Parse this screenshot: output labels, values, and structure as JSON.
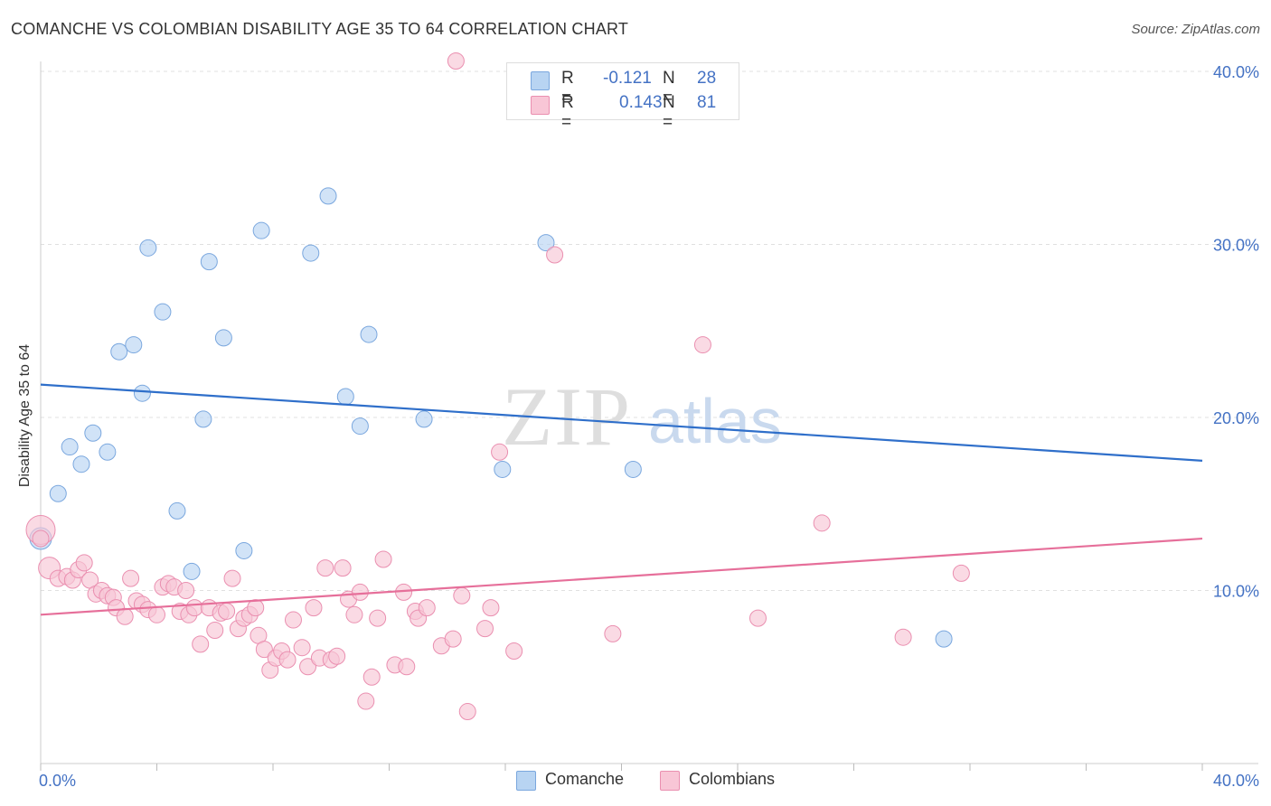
{
  "title": "COMANCHE VS COLOMBIAN DISABILITY AGE 35 TO 64 CORRELATION CHART",
  "source": "Source: ZipAtlas.com",
  "watermark": {
    "zip": "ZIP",
    "atlas": "atlas"
  },
  "legend": {
    "rows": [
      {
        "r_label": "R =",
        "r_value": "-0.121",
        "n_label": "N =",
        "n_value": "28"
      },
      {
        "r_label": "R =",
        "r_value": "0.143",
        "n_label": "N =",
        "n_value": "81"
      }
    ]
  },
  "bottom_legend": [
    "Comanche",
    "Colombians"
  ],
  "colors": {
    "comanche_fill": "#b8d4f2",
    "comanche_stroke": "#7aa7de",
    "comanche_line": "#2f6fca",
    "colombian_fill": "#f8c6d6",
    "colombian_stroke": "#ea8fb0",
    "colombian_line": "#e66f9a",
    "tick_label": "#4472c4",
    "grid": "#e0e0e0"
  },
  "chart_data": {
    "type": "scatter",
    "title": "COMANCHE VS COLOMBIAN DISABILITY AGE 35 TO 64 CORRELATION CHART",
    "xlabel": "",
    "ylabel": "Disability Age 35 to 64",
    "xlim": [
      0,
      40
    ],
    "ylim": [
      0,
      40
    ],
    "x_tick_labels": [
      "0.0%",
      "40.0%"
    ],
    "y_ticks": [
      10,
      20,
      30,
      40
    ],
    "y_tick_labels": [
      "10.0%",
      "20.0%",
      "30.0%",
      "40.0%"
    ],
    "grid": true,
    "series": [
      {
        "name": "Comanche",
        "r": -0.121,
        "n": 28,
        "trend": {
          "x": [
            0,
            40
          ],
          "y": [
            21.9,
            17.5
          ]
        },
        "points": [
          {
            "x": 0.0,
            "y": 13.0
          },
          {
            "x": 0.6,
            "y": 15.6
          },
          {
            "x": 1.0,
            "y": 18.3
          },
          {
            "x": 1.4,
            "y": 17.3
          },
          {
            "x": 1.8,
            "y": 19.1
          },
          {
            "x": 2.3,
            "y": 18.0
          },
          {
            "x": 2.7,
            "y": 23.8
          },
          {
            "x": 3.2,
            "y": 24.2
          },
          {
            "x": 3.5,
            "y": 21.4
          },
          {
            "x": 3.7,
            "y": 29.8
          },
          {
            "x": 4.2,
            "y": 26.1
          },
          {
            "x": 4.7,
            "y": 14.6
          },
          {
            "x": 5.2,
            "y": 11.1
          },
          {
            "x": 5.6,
            "y": 19.9
          },
          {
            "x": 5.8,
            "y": 29.0
          },
          {
            "x": 6.3,
            "y": 24.6
          },
          {
            "x": 7.0,
            "y": 12.3
          },
          {
            "x": 7.6,
            "y": 30.8
          },
          {
            "x": 9.3,
            "y": 29.5
          },
          {
            "x": 9.9,
            "y": 32.8
          },
          {
            "x": 10.5,
            "y": 21.2
          },
          {
            "x": 11.0,
            "y": 19.5
          },
          {
            "x": 11.3,
            "y": 24.8
          },
          {
            "x": 13.2,
            "y": 19.9
          },
          {
            "x": 15.9,
            "y": 17.0
          },
          {
            "x": 17.4,
            "y": 30.1
          },
          {
            "x": 20.4,
            "y": 17.0
          },
          {
            "x": 31.1,
            "y": 7.2
          }
        ]
      },
      {
        "name": "Colombians",
        "r": 0.143,
        "n": 81,
        "trend": {
          "x": [
            0,
            40
          ],
          "y": [
            8.6,
            13.0
          ]
        },
        "points": [
          {
            "x": 0.0,
            "y": 13.5
          },
          {
            "x": 0.3,
            "y": 11.3
          },
          {
            "x": 0.6,
            "y": 10.7
          },
          {
            "x": 0.9,
            "y": 10.8
          },
          {
            "x": 1.1,
            "y": 10.6
          },
          {
            "x": 1.3,
            "y": 11.2
          },
          {
            "x": 1.5,
            "y": 11.6
          },
          {
            "x": 1.7,
            "y": 10.6
          },
          {
            "x": 1.9,
            "y": 9.8
          },
          {
            "x": 2.1,
            "y": 10.0
          },
          {
            "x": 2.3,
            "y": 9.7
          },
          {
            "x": 2.5,
            "y": 9.6
          },
          {
            "x": 2.6,
            "y": 9.0
          },
          {
            "x": 2.9,
            "y": 8.5
          },
          {
            "x": 3.1,
            "y": 10.7
          },
          {
            "x": 3.3,
            "y": 9.4
          },
          {
            "x": 3.5,
            "y": 9.2
          },
          {
            "x": 3.7,
            "y": 8.9
          },
          {
            "x": 4.0,
            "y": 8.6
          },
          {
            "x": 4.2,
            "y": 10.2
          },
          {
            "x": 4.4,
            "y": 10.4
          },
          {
            "x": 4.6,
            "y": 10.2
          },
          {
            "x": 4.8,
            "y": 8.8
          },
          {
            "x": 5.1,
            "y": 8.6
          },
          {
            "x": 5.0,
            "y": 10.0
          },
          {
            "x": 5.3,
            "y": 9.0
          },
          {
            "x": 5.5,
            "y": 6.9
          },
          {
            "x": 5.8,
            "y": 9.0
          },
          {
            "x": 6.0,
            "y": 7.7
          },
          {
            "x": 6.2,
            "y": 8.7
          },
          {
            "x": 6.4,
            "y": 8.8
          },
          {
            "x": 6.6,
            "y": 10.7
          },
          {
            "x": 6.8,
            "y": 7.8
          },
          {
            "x": 7.0,
            "y": 8.4
          },
          {
            "x": 7.2,
            "y": 8.6
          },
          {
            "x": 7.4,
            "y": 9.0
          },
          {
            "x": 7.5,
            "y": 7.4
          },
          {
            "x": 7.7,
            "y": 6.6
          },
          {
            "x": 7.9,
            "y": 5.4
          },
          {
            "x": 8.1,
            "y": 6.1
          },
          {
            "x": 8.3,
            "y": 6.5
          },
          {
            "x": 8.5,
            "y": 6.0
          },
          {
            "x": 8.7,
            "y": 8.3
          },
          {
            "x": 9.0,
            "y": 6.7
          },
          {
            "x": 9.2,
            "y": 5.6
          },
          {
            "x": 9.4,
            "y": 9.0
          },
          {
            "x": 9.6,
            "y": 6.1
          },
          {
            "x": 9.8,
            "y": 11.3
          },
          {
            "x": 10.0,
            "y": 6.0
          },
          {
            "x": 10.2,
            "y": 6.2
          },
          {
            "x": 10.4,
            "y": 11.3
          },
          {
            "x": 10.6,
            "y": 9.5
          },
          {
            "x": 10.8,
            "y": 8.6
          },
          {
            "x": 11.0,
            "y": 9.9
          },
          {
            "x": 11.2,
            "y": 3.6
          },
          {
            "x": 11.4,
            "y": 5.0
          },
          {
            "x": 11.6,
            "y": 8.4
          },
          {
            "x": 11.8,
            "y": 11.8
          },
          {
            "x": 12.2,
            "y": 5.7
          },
          {
            "x": 12.5,
            "y": 9.9
          },
          {
            "x": 12.6,
            "y": 5.6
          },
          {
            "x": 12.9,
            "y": 8.8
          },
          {
            "x": 13.0,
            "y": 8.4
          },
          {
            "x": 13.3,
            "y": 9.0
          },
          {
            "x": 13.8,
            "y": 6.8
          },
          {
            "x": 14.2,
            "y": 7.2
          },
          {
            "x": 14.5,
            "y": 9.7
          },
          {
            "x": 14.7,
            "y": 3.0
          },
          {
            "x": 14.3,
            "y": 40.6
          },
          {
            "x": 15.3,
            "y": 7.8
          },
          {
            "x": 15.5,
            "y": 9.0
          },
          {
            "x": 15.8,
            "y": 18.0
          },
          {
            "x": 16.3,
            "y": 6.5
          },
          {
            "x": 17.7,
            "y": 29.4
          },
          {
            "x": 19.7,
            "y": 7.5
          },
          {
            "x": 22.8,
            "y": 24.2
          },
          {
            "x": 24.7,
            "y": 8.4
          },
          {
            "x": 26.9,
            "y": 13.9
          },
          {
            "x": 29.7,
            "y": 7.3
          },
          {
            "x": 31.7,
            "y": 11.0
          },
          {
            "x": 0.0,
            "y": 13.0
          }
        ]
      }
    ]
  }
}
